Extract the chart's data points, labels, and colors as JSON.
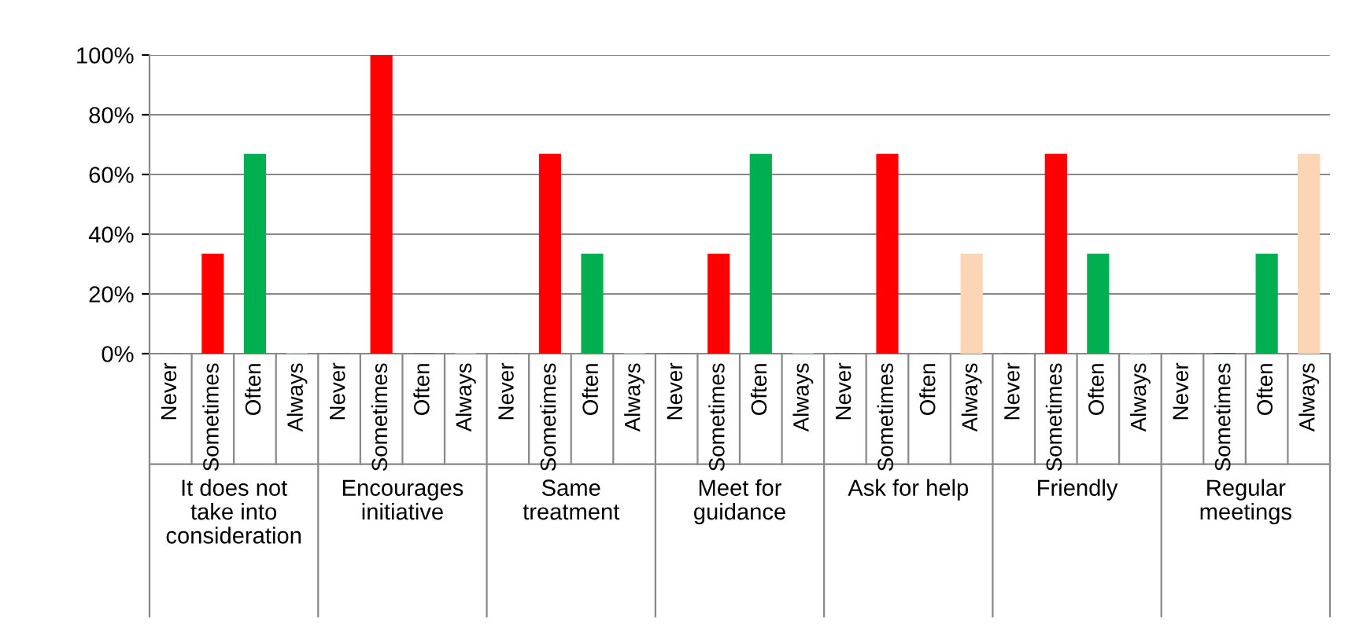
{
  "chart_data": {
    "type": "bar",
    "categories": [
      "It does not take into consideration",
      "Encourages initiative",
      "Same treatment",
      "Meet for guidance",
      "Ask for help",
      "Friendly",
      "Regular meetings"
    ],
    "series": [
      {
        "name": "Never",
        "color": "#4f81bd",
        "values": [
          0,
          0,
          0,
          0,
          0,
          0,
          0
        ]
      },
      {
        "name": "Sometimes",
        "color": "#ff0000",
        "values": [
          33.3,
          100,
          66.7,
          33.3,
          66.7,
          66.7,
          0
        ]
      },
      {
        "name": "Often",
        "color": "#00b050",
        "values": [
          66.7,
          0,
          33.3,
          66.7,
          0,
          33.3,
          33.3
        ]
      },
      {
        "name": "Always",
        "color": "#fcd5b5",
        "values": [
          0,
          0,
          0,
          0,
          33.3,
          0,
          66.7
        ]
      }
    ],
    "ylim": [
      0,
      100
    ],
    "yticks": [
      {
        "value": 0,
        "label": "0%"
      },
      {
        "value": 20,
        "label": "20%"
      },
      {
        "value": 40,
        "label": "40%"
      },
      {
        "value": 60,
        "label": "60%"
      },
      {
        "value": 80,
        "label": "80%"
      },
      {
        "value": 100,
        "label": "100%"
      }
    ],
    "grid": "y",
    "legend": false
  }
}
